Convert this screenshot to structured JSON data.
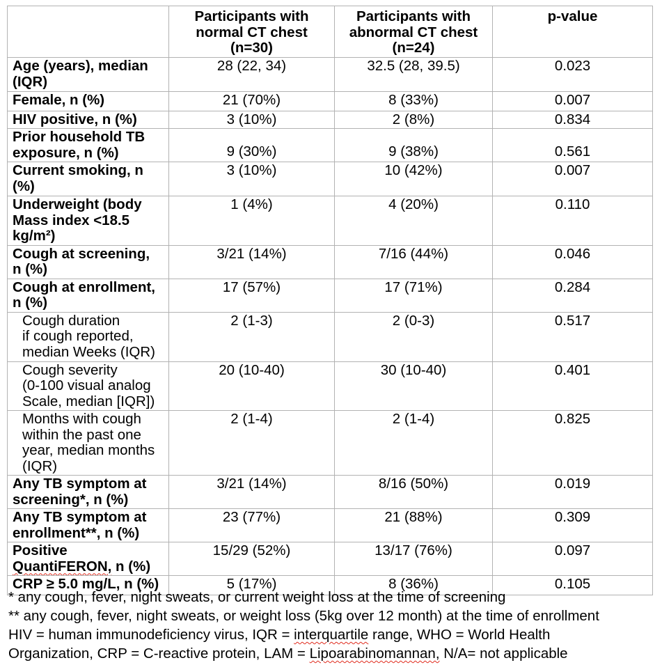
{
  "table": {
    "columns": {
      "corner": "",
      "normal_ct": "Participants with\nnormal CT chest\n(n=30)",
      "abnormal_ct": "Participants with\nabnormal CT chest\n(n=24)",
      "p_value": "p-value"
    },
    "rows": [
      {
        "label": "Age (years), median\n(IQR)",
        "normal": "28 (22, 34)",
        "abnormal": "32.5 (28, 39.5)",
        "p": "0.023"
      },
      {
        "label": "Female, n (%)",
        "normal": "21 (70%)",
        "abnormal": "8 (33%)",
        "p": "0.007",
        "vbottom": true
      },
      {
        "label": "HIV positive, n (%)",
        "normal": "3 (10%)",
        "abnormal": "2 (8%)",
        "p": "0.834"
      },
      {
        "label": "Prior household TB\nexposure, n (%)",
        "normal": "9 (30%)",
        "abnormal": "9 (38%)",
        "p": "0.561",
        "vbottom": true
      },
      {
        "label": "Current smoking, n\n(%)",
        "normal": "3 (10%)",
        "abnormal": "10 (42%)",
        "p": "0.007"
      },
      {
        "label": "Underweight (body\nMass index <18.5\nkg/m²)",
        "normal": "1 (4%)",
        "abnormal": "4 (20%)",
        "p": "0.110"
      },
      {
        "label": "Cough at screening,\nn (%)",
        "normal": "3/21 (14%)",
        "abnormal": "7/16 (44%)",
        "p": "0.046"
      },
      {
        "label": "Cough at enrollment,\nn (%)",
        "normal": "17 (57%)",
        "abnormal": "17 (71%)",
        "p": "0.284"
      },
      {
        "label": "Cough duration\nif cough reported,\nmedian Weeks (IQR)",
        "normal": "2 (1-3)",
        "abnormal": "2 (0-3)",
        "p": "0.517",
        "sub": true
      },
      {
        "label": "Cough severity\n(0-100 visual analog\nScale, median [IQR])",
        "normal": "20 (10-40)",
        "abnormal": "30 (10-40)",
        "p": "0.401",
        "sub": true
      },
      {
        "label": "Months with cough\nwithin the past one\nyear, median months\n(IQR)",
        "normal": "2 (1-4)",
        "abnormal": "2 (1-4)",
        "p": "0.825",
        "sub": true
      },
      {
        "label": "Any TB symptom at\nscreening*, n (%)",
        "normal": "3/21 (14%)",
        "abnormal": "8/16 (50%)",
        "p": "0.019"
      },
      {
        "label": "Any TB symptom at\nenrollment**, n (%)",
        "normal": "23 (77%)",
        "abnormal": "21 (88%)",
        "p": "0.309"
      },
      {
        "label": "Positive\nQuantiFERON, n (%)",
        "normal": "15/29 (52%)",
        "abnormal": "13/17 (76%)",
        "p": "0.097",
        "misspelled": [
          "QuantiFERON,"
        ]
      },
      {
        "label": "CRP ≥ 5.0 mg/L, n (%)",
        "normal": "5 (17%)",
        "abnormal": "8 (36%)",
        "p": "0.105"
      }
    ]
  },
  "footnotes": [
    {
      "text": "* any cough, fever, night sweats, or current weight loss at the time of screening"
    },
    {
      "text": "** any cough, fever, night sweats, or weight loss (5kg over 12 month) at the time of enrollment"
    },
    {
      "text": "HIV = human immunodeficiency virus, IQR = interquartile range, WHO = World Health",
      "misspelled": [
        "interquartile"
      ]
    },
    {
      "text": "Organization, CRP = C-reactive protein, LAM = Lipoarabinomannan, N/A= not applicable",
      "misspelled": [
        "Lipoarabinomannan,"
      ]
    }
  ],
  "colors": {
    "table_border": "#b2b2b2",
    "spellcheck_squiggle": "#e02b1d",
    "text": "#000000",
    "background": "#ffffff"
  }
}
